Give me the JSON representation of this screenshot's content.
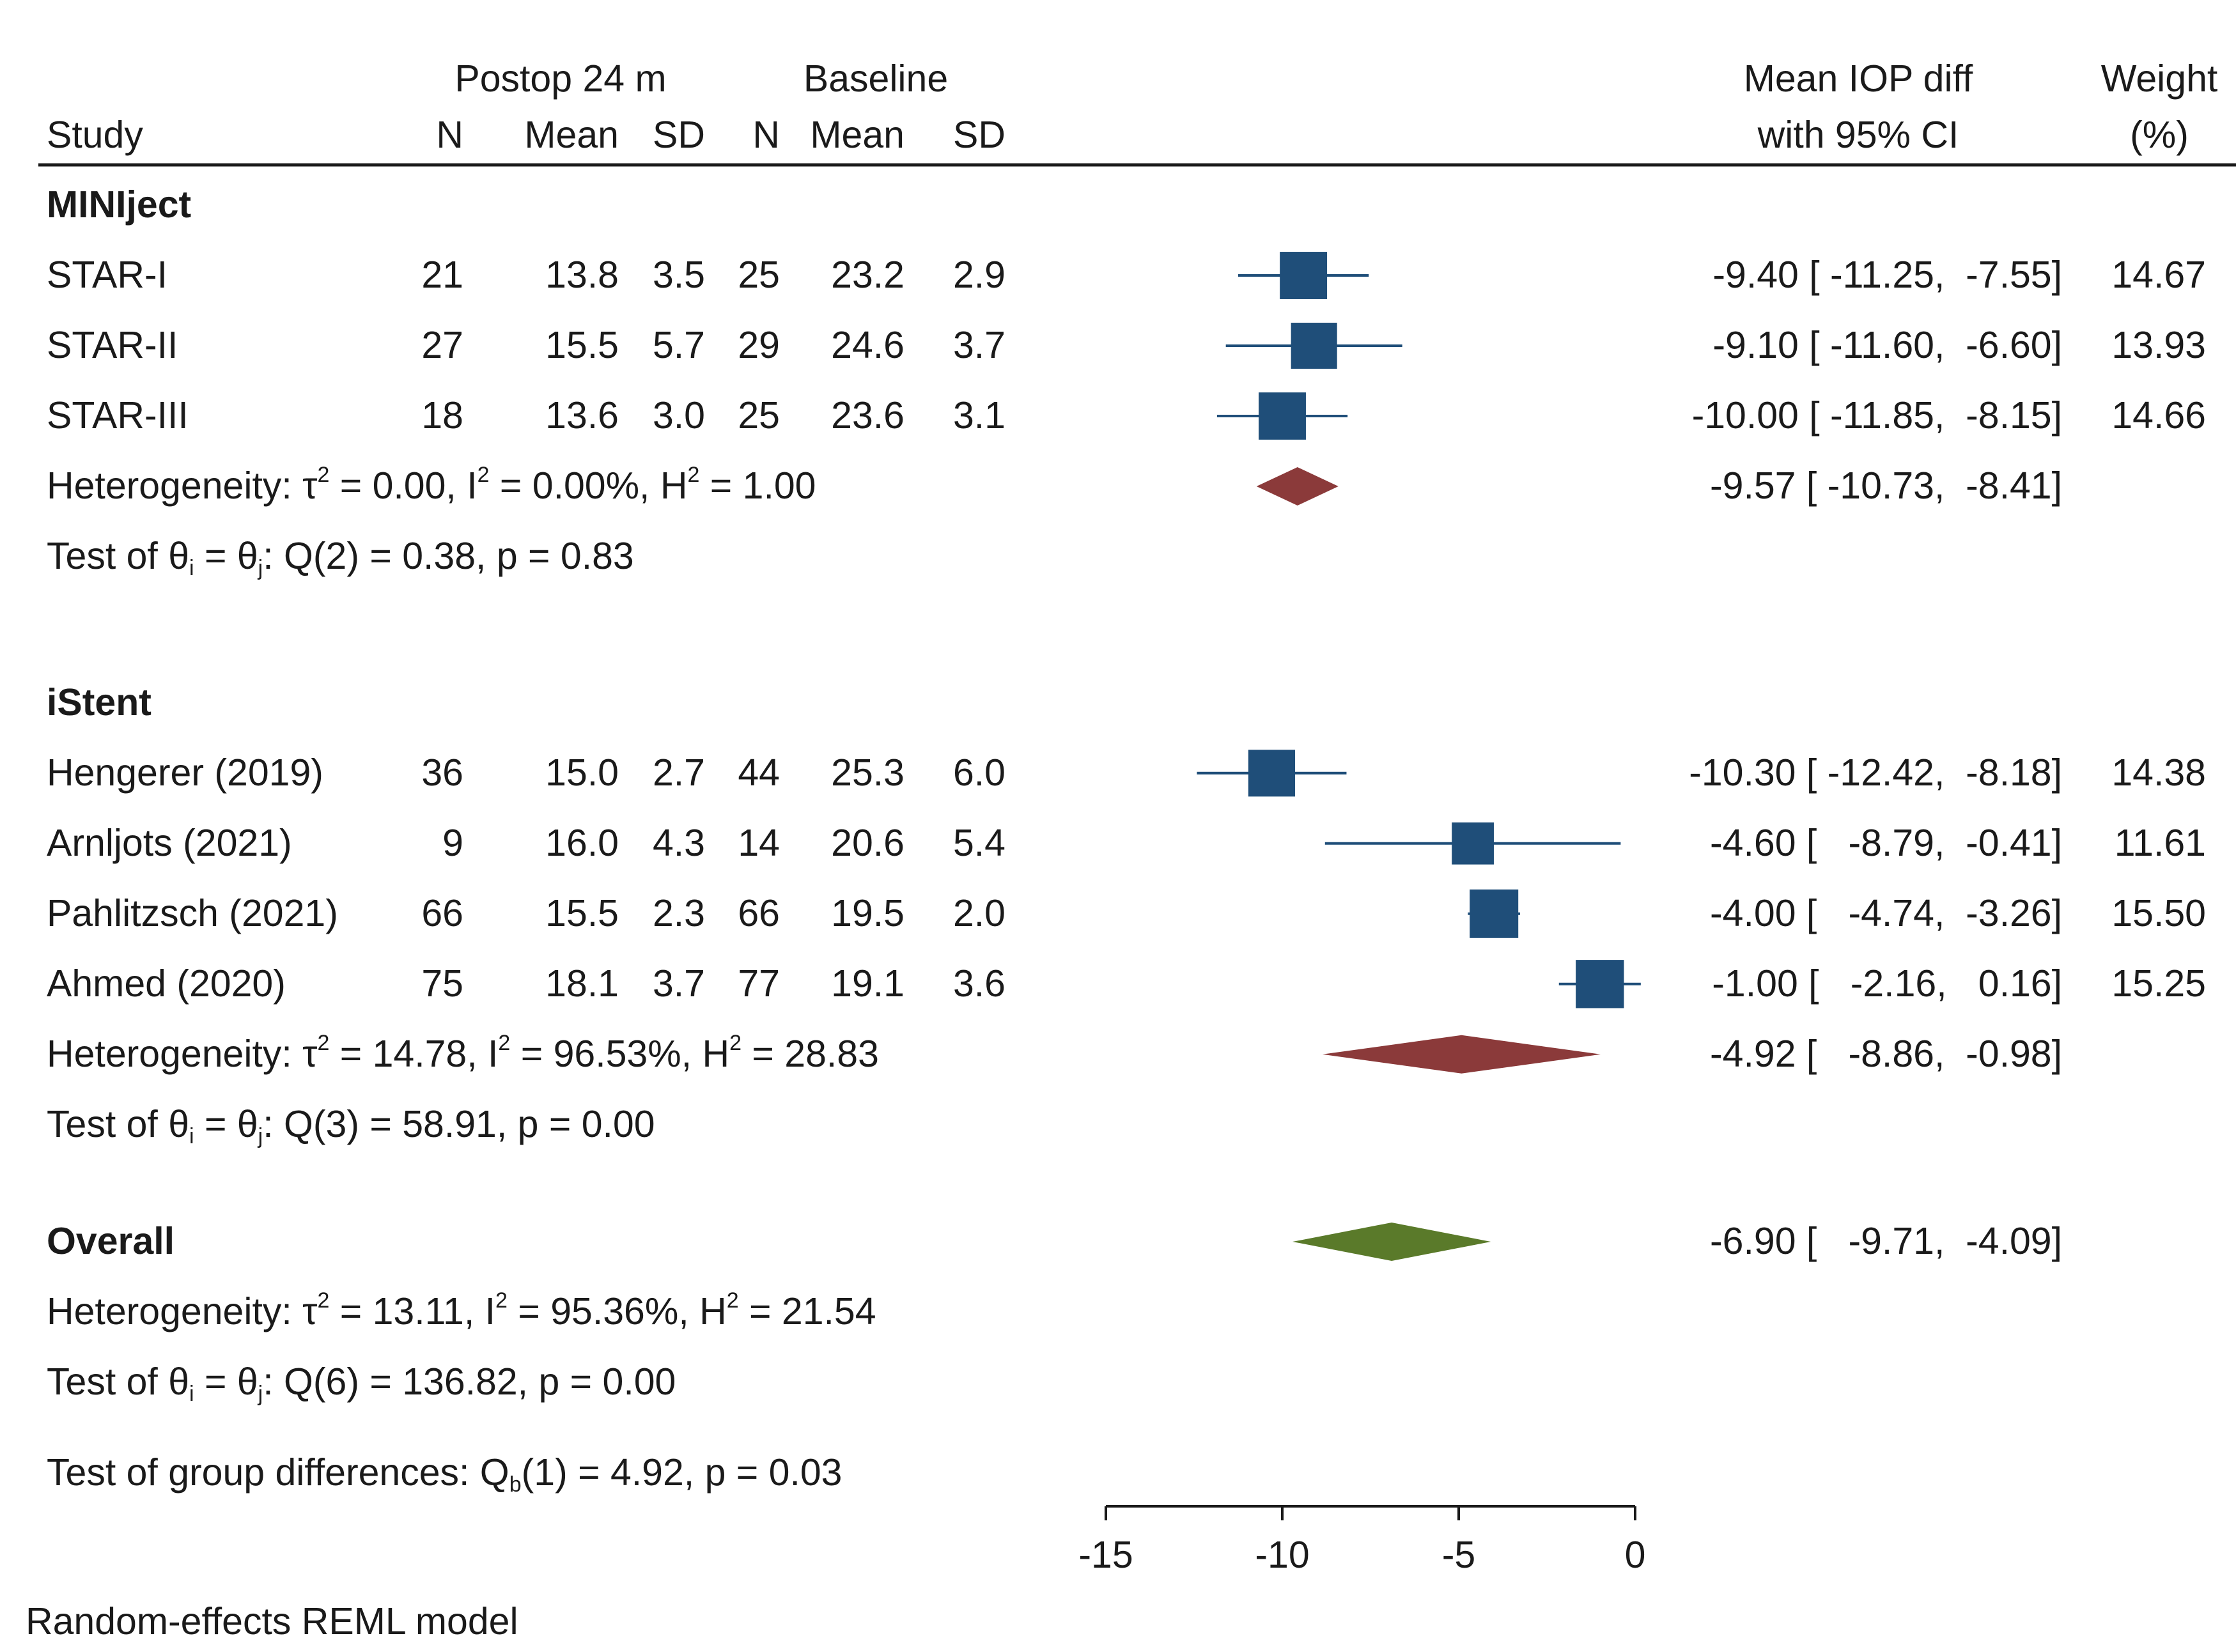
{
  "header": {
    "study": "Study",
    "group_postop": "Postop 24 m",
    "group_baseline": "Baseline",
    "n": "N",
    "mean": "Mean",
    "sd": "SD",
    "effect_line1": "Mean IOP diff",
    "effect_line2": "with 95% CI",
    "weight_line1": "Weight",
    "weight_line2": "(%)"
  },
  "footer": {
    "model": "Random-effects REML model",
    "group_test": "Test of group differences: Q<sub>b</sub>(1) = 4.92, p = 0.03"
  },
  "colors": {
    "study_marker": "#1f4e79",
    "subgroup_diamond": "#8b3a3a",
    "overall_diamond": "#5a7a2a",
    "text": "#1a1a1a"
  },
  "chart_data": {
    "type": "forest",
    "title": "",
    "xlabel": "",
    "ylabel": "",
    "xlim": [
      -15,
      0
    ],
    "xticks": [
      -15,
      -10,
      -5,
      0
    ],
    "xtick_labels": [
      "-15",
      "-10",
      "-5",
      "0"
    ],
    "groups": [
      {
        "name": "MINIject",
        "studies": [
          {
            "study": "STAR-I",
            "post_n": "21",
            "post_mean": "13.8",
            "post_sd": "3.5",
            "base_n": "25",
            "base_mean": "23.2",
            "base_sd": "2.9",
            "effect": -9.4,
            "lower": -11.25,
            "upper": -7.55,
            "ci_text": "-9.40 [ -11.25,  -7.55]",
            "weight": 14.67,
            "weight_text": "14.67"
          },
          {
            "study": "STAR-II",
            "post_n": "27",
            "post_mean": "15.5",
            "post_sd": "5.7",
            "base_n": "29",
            "base_mean": "24.6",
            "base_sd": "3.7",
            "effect": -9.1,
            "lower": -11.6,
            "upper": -6.6,
            "ci_text": "-9.10 [ -11.60,  -6.60]",
            "weight": 13.93,
            "weight_text": "13.93"
          },
          {
            "study": "STAR-III",
            "post_n": "18",
            "post_mean": "13.6",
            "post_sd": "3.0",
            "base_n": "25",
            "base_mean": "23.6",
            "base_sd": "3.1",
            "effect": -10.0,
            "lower": -11.85,
            "upper": -8.15,
            "ci_text": "-10.00 [ -11.85,  -8.15]",
            "weight": 14.66,
            "weight_text": "14.66"
          }
        ],
        "pooled": {
          "effect": -9.57,
          "lower": -10.73,
          "upper": -8.41,
          "ci_text": "-9.57 [ -10.73,  -8.41]"
        },
        "heterogeneity": "Heterogeneity: τ<sup>2</sup> = 0.00, I<sup>2</sup> = 0.00%, H<sup>2</sup> = 1.00",
        "test": "Test of θ<sub>i</sub> = θ<sub>j</sub>: Q(2) = 0.38, p = 0.83"
      },
      {
        "name": "iStent",
        "studies": [
          {
            "study": "Hengerer (2019)",
            "post_n": "36",
            "post_mean": "15.0",
            "post_sd": "2.7",
            "base_n": "44",
            "base_mean": "25.3",
            "base_sd": "6.0",
            "effect": -10.3,
            "lower": -12.42,
            "upper": -8.18,
            "ci_text": "-10.30 [ -12.42,  -8.18]",
            "weight": 14.38,
            "weight_text": "14.38"
          },
          {
            "study": "Arnljots (2021)",
            "post_n": "9",
            "post_mean": "16.0",
            "post_sd": "4.3",
            "base_n": "14",
            "base_mean": "20.6",
            "base_sd": "5.4",
            "effect": -4.6,
            "lower": -8.79,
            "upper": -0.41,
            "ci_text": "-4.60 [   -8.79,  -0.41]",
            "weight": 11.61,
            "weight_text": "11.61"
          },
          {
            "study": "Pahlitzsch (2021)",
            "post_n": "66",
            "post_mean": "15.5",
            "post_sd": "2.3",
            "base_n": "66",
            "base_mean": "19.5",
            "base_sd": "2.0",
            "effect": -4.0,
            "lower": -4.74,
            "upper": -3.26,
            "ci_text": "-4.00 [   -4.74,  -3.26]",
            "weight": 15.5,
            "weight_text": "15.50"
          },
          {
            "study": "Ahmed (2020)",
            "post_n": "75",
            "post_mean": "18.1",
            "post_sd": "3.7",
            "base_n": "77",
            "base_mean": "19.1",
            "base_sd": "3.6",
            "effect": -1.0,
            "lower": -2.16,
            "upper": 0.16,
            "ci_text": "-1.00 [   -2.16,   0.16]",
            "weight": 15.25,
            "weight_text": "15.25"
          }
        ],
        "pooled": {
          "effect": -4.92,
          "lower": -8.86,
          "upper": -0.98,
          "ci_text": "-4.92 [   -8.86,  -0.98]"
        },
        "heterogeneity": "Heterogeneity: τ<sup>2</sup> = 14.78, I<sup>2</sup> = 96.53%, H<sup>2</sup> = 28.83",
        "test": "Test of θ<sub>i</sub> = θ<sub>j</sub>: Q(3) = 58.91, p = 0.00"
      }
    ],
    "overall": {
      "label": "Overall",
      "effect": -6.9,
      "lower": -9.71,
      "upper": -4.09,
      "ci_text": "-6.90 [   -9.71,  -4.09]",
      "heterogeneity": "Heterogeneity: τ<sup>2</sup> = 13.11, I<sup>2</sup> = 95.36%, H<sup>2</sup> = 21.54",
      "test": "Test of θ<sub>i</sub> = θ<sub>j</sub>: Q(6) = 136.82, p = 0.00"
    }
  }
}
